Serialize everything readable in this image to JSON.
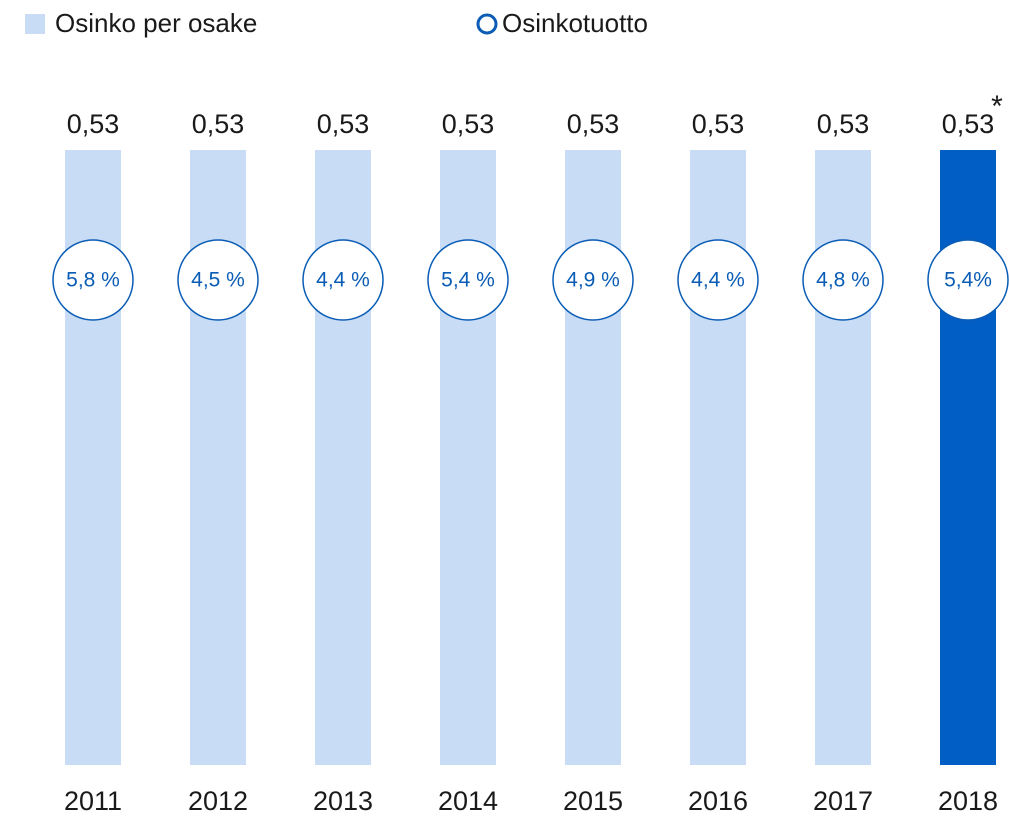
{
  "chart_data": {
    "type": "bar",
    "categories": [
      "2011",
      "2012",
      "2013",
      "2014",
      "2015",
      "2016",
      "2017",
      "2018"
    ],
    "series": [
      {
        "name": "Osinko per osake",
        "color": "#c9dcf5",
        "colors": [
          "#c9dcf5",
          "#c9dcf5",
          "#c9dcf5",
          "#c9dcf5",
          "#c9dcf5",
          "#c9dcf5",
          "#c9dcf5",
          "#005ec4"
        ],
        "values": [
          0.53,
          0.53,
          0.53,
          0.53,
          0.53,
          0.53,
          0.53,
          0.53
        ],
        "value_labels": [
          "0,53",
          "0,53",
          "0,53",
          "0,53",
          "0,53",
          "0,53",
          "0,53",
          "0,53"
        ]
      },
      {
        "name": "Osinkotuotto",
        "color": "#0a5cb5",
        "values": [
          5.8,
          4.5,
          4.4,
          5.4,
          4.9,
          4.4,
          4.8,
          5.4
        ],
        "value_labels": [
          "5,8 %",
          "4,5 %",
          "4,4 %",
          "5,4 %",
          "4,9 %",
          "4,4 %",
          "4,8 %",
          "5,4%"
        ]
      }
    ],
    "annotation": "*"
  }
}
